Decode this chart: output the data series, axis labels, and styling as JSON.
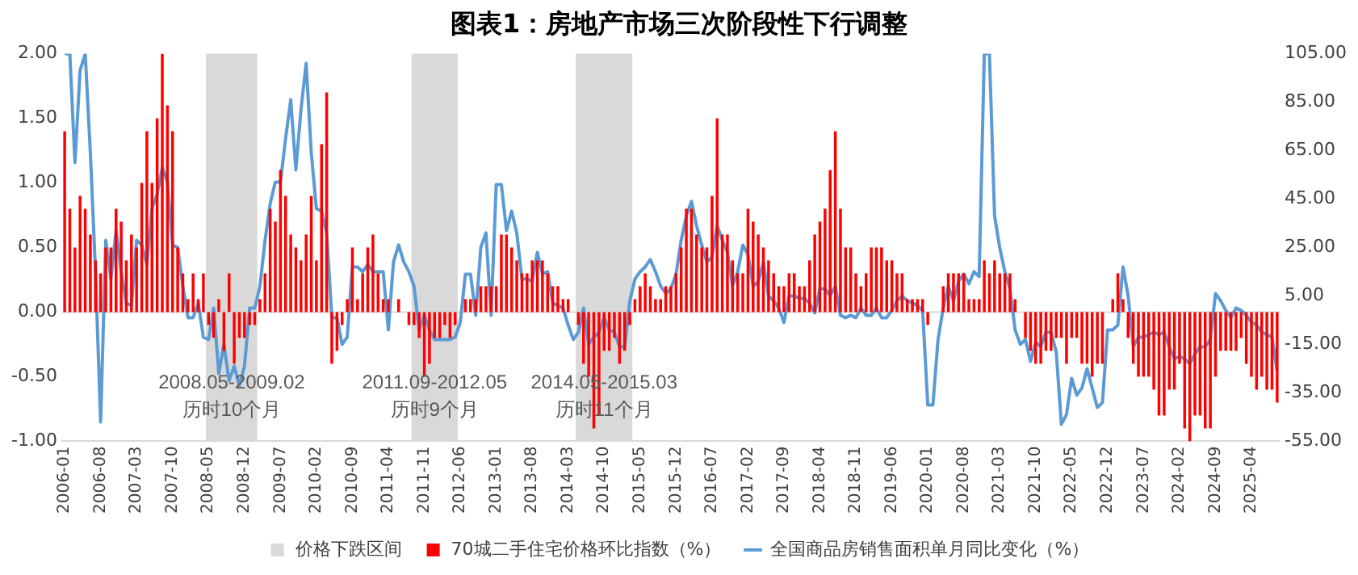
{
  "chart_data": {
    "type": "bar",
    "title": "图表1：房地产市场三次阶段性下行调整",
    "x": [
      "2006-01",
      "2006-02",
      "2006-03",
      "2006-04",
      "2006-05",
      "2006-06",
      "2006-07",
      "2006-08",
      "2006-09",
      "2006-10",
      "2006-11",
      "2006-12",
      "2007-01",
      "2007-02",
      "2007-03",
      "2007-04",
      "2007-05",
      "2007-06",
      "2007-07",
      "2007-08",
      "2007-09",
      "2007-10",
      "2007-11",
      "2007-12",
      "2008-01",
      "2008-02",
      "2008-03",
      "2008-04",
      "2008-05",
      "2008-06",
      "2008-07",
      "2008-08",
      "2008-09",
      "2008-10",
      "2008-11",
      "2008-12",
      "2009-01",
      "2009-02",
      "2009-03",
      "2009-04",
      "2009-05",
      "2009-06",
      "2009-07",
      "2009-08",
      "2009-09",
      "2009-10",
      "2009-11",
      "2009-12",
      "2010-01",
      "2010-02",
      "2010-03",
      "2010-04",
      "2010-05",
      "2010-06",
      "2010-07",
      "2010-08",
      "2010-09",
      "2010-10",
      "2010-11",
      "2010-12",
      "2011-01",
      "2011-02",
      "2011-03",
      "2011-04",
      "2011-05",
      "2011-06",
      "2011-07",
      "2011-08",
      "2011-09",
      "2011-10",
      "2011-11",
      "2011-12",
      "2012-01",
      "2012-02",
      "2012-03",
      "2012-04",
      "2012-05",
      "2012-06",
      "2012-07",
      "2012-08",
      "2012-09",
      "2012-10",
      "2012-11",
      "2012-12",
      "2013-01",
      "2013-02",
      "2013-03",
      "2013-04",
      "2013-05",
      "2013-06",
      "2013-07",
      "2013-08",
      "2013-09",
      "2013-10",
      "2013-11",
      "2013-12",
      "2014-01",
      "2014-02",
      "2014-03",
      "2014-04",
      "2014-05",
      "2014-06",
      "2014-07",
      "2014-08",
      "2014-09",
      "2014-10",
      "2014-11",
      "2014-12",
      "2015-01",
      "2015-02",
      "2015-03",
      "2015-04",
      "2015-05",
      "2015-06",
      "2015-07",
      "2015-08",
      "2015-09",
      "2015-10",
      "2015-11",
      "2015-12",
      "2016-01",
      "2016-02",
      "2016-03",
      "2016-04",
      "2016-05",
      "2016-06",
      "2016-07",
      "2016-08",
      "2016-09",
      "2016-10",
      "2016-11",
      "2016-12",
      "2017-01",
      "2017-02",
      "2017-03",
      "2017-04",
      "2017-05",
      "2017-06",
      "2017-07",
      "2017-08",
      "2017-09",
      "2017-10",
      "2017-11",
      "2017-12",
      "2018-01",
      "2018-02",
      "2018-03",
      "2018-04",
      "2018-05",
      "2018-06",
      "2018-07",
      "2018-08",
      "2018-09",
      "2018-10",
      "2018-11",
      "2018-12",
      "2019-01",
      "2019-02",
      "2019-03",
      "2019-04",
      "2019-05",
      "2019-06",
      "2019-07",
      "2019-08",
      "2019-09",
      "2019-10",
      "2019-11",
      "2019-12",
      "2020-01",
      "2020-02",
      "2020-03",
      "2020-04",
      "2020-05",
      "2020-06",
      "2020-07",
      "2020-08",
      "2020-09",
      "2020-10",
      "2020-11",
      "2020-12",
      "2021-01",
      "2021-02",
      "2021-03",
      "2021-04",
      "2021-05",
      "2021-06",
      "2021-07",
      "2021-08",
      "2021-09",
      "2021-10",
      "2021-11",
      "2021-12",
      "2022-01",
      "2022-02",
      "2022-03",
      "2022-04",
      "2022-05",
      "2022-06",
      "2022-07",
      "2022-08",
      "2022-09",
      "2022-10",
      "2022-11",
      "2022-12",
      "2023-01",
      "2023-02",
      "2023-03",
      "2023-04",
      "2023-05",
      "2023-06",
      "2023-07",
      "2023-08",
      "2023-09",
      "2023-10",
      "2023-11",
      "2023-12",
      "2024-01",
      "2024-02",
      "2024-03",
      "2024-04",
      "2024-05",
      "2024-06",
      "2024-07",
      "2024-08",
      "2024-09",
      "2024-10",
      "2024-11",
      "2024-12",
      "2025-01",
      "2025-02",
      "2025-03",
      "2025-04",
      "2025-05",
      "2025-06",
      "2025-07",
      "2025-08",
      "2025-09"
    ],
    "xticks": [
      "2006-01",
      "2006-08",
      "2007-03",
      "2007-10",
      "2008-05",
      "2008-12",
      "2009-07",
      "2010-02",
      "2010-09",
      "2011-04",
      "2011-11",
      "2012-06",
      "2013-01",
      "2013-08",
      "2014-03",
      "2014-10",
      "2015-05",
      "2015-12",
      "2016-07",
      "2017-02",
      "2017-09",
      "2018-04",
      "2018-11",
      "2019-06",
      "2020-01",
      "2020-08",
      "2021-03",
      "2021-10",
      "2022-05",
      "2022-12",
      "2023-07",
      "2024-02",
      "2024-09",
      "2025-04"
    ],
    "xlim": [
      "2005-12-16",
      "2025-09-16"
    ],
    "ylim": [
      -1,
      2
    ],
    "yticks": [
      {
        "value": -1,
        "label": "-1.00"
      },
      {
        "value": -0.5,
        "label": "-0.50"
      },
      {
        "value": 0,
        "label": "0.00"
      },
      {
        "value": 0.5,
        "label": "0.50"
      },
      {
        "value": 1,
        "label": "1.00"
      },
      {
        "value": 1.5,
        "label": "1.50"
      },
      {
        "value": 2,
        "label": "2.00"
      }
    ],
    "y2lim": [
      -55,
      105
    ],
    "y2ticks": [
      {
        "value": -55,
        "label": "-55.00"
      },
      {
        "value": -35,
        "label": "-35.00"
      },
      {
        "value": -15,
        "label": "-15.00"
      },
      {
        "value": 5,
        "label": "5.00"
      },
      {
        "value": 25,
        "label": "25.00"
      },
      {
        "value": 45,
        "label": "45.00"
      },
      {
        "value": 65,
        "label": "65.00"
      },
      {
        "value": 85,
        "label": "85.00"
      },
      {
        "value": 105,
        "label": "105.00"
      }
    ],
    "legend": "bottom",
    "marker": "none",
    "grid": false,
    "ref_lines": [
      {
        "axis": "y",
        "value": 0,
        "color": "#d9d9d9"
      }
    ],
    "bands": [
      {
        "axis": "x",
        "from": "2008-05",
        "to": "2009-02",
        "label": "价格下跌区间",
        "color": "#d9d9d9"
      },
      {
        "axis": "x",
        "from": "2011-09",
        "to": "2012-05",
        "color": "#d9d9d9"
      },
      {
        "axis": "x",
        "from": "2014-05",
        "to": "2015-03",
        "color": "#d9d9d9"
      }
    ],
    "annotations": [
      "2008.05-2009.02\n历时10个月",
      "2011.09-2012.05\n历时9个月",
      "2014.05-2015.03\n历时11个月"
    ],
    "series": [
      {
        "name": "70城二手住宅价格环比指数（%）",
        "color": "#ff0000",
        "values": [
          1.4,
          0.8,
          0.5,
          0.9,
          0.8,
          0.6,
          0.4,
          0.3,
          0.5,
          0.5,
          0.8,
          0.7,
          0.4,
          0.6,
          0.5,
          1.0,
          1.4,
          1.0,
          1.5,
          2.0,
          1.6,
          1.4,
          0.5,
          0.3,
          0.1,
          0.3,
          0.1,
          0.3,
          -0.1,
          -0.2,
          0.1,
          -0.3,
          0.3,
          -0.4,
          -0.2,
          -0.2,
          -0.1,
          -0.1,
          0.1,
          0.3,
          0.8,
          0.7,
          1.1,
          0.9,
          0.6,
          0.5,
          0.4,
          0.6,
          0.9,
          0.4,
          1.3,
          1.7,
          -0.4,
          -0.3,
          -0.1,
          0.1,
          0.5,
          0.1,
          0.3,
          0.5,
          0.6,
          0.3,
          0.1,
          0.1,
          0.0,
          0.1,
          0.0,
          -0.1,
          -0.1,
          -0.2,
          -0.5,
          -0.4,
          -0.2,
          -0.2,
          -0.1,
          -0.2,
          -0.1,
          0.0,
          0.1,
          0.1,
          0.1,
          0.2,
          0.2,
          0.2,
          0.2,
          0.6,
          0.6,
          0.5,
          0.4,
          0.3,
          0.3,
          0.4,
          0.4,
          0.4,
          0.3,
          0.2,
          0.2,
          0.1,
          0.1,
          0.0,
          -0.1,
          -0.4,
          -0.5,
          -0.9,
          -0.8,
          -0.3,
          -0.3,
          -0.2,
          -0.4,
          -0.3,
          -0.1,
          0.1,
          0.2,
          0.3,
          0.2,
          0.1,
          0.1,
          0.2,
          0.2,
          0.3,
          0.5,
          0.8,
          0.8,
          0.6,
          0.5,
          0.5,
          0.9,
          1.5,
          0.6,
          0.6,
          0.4,
          0.3,
          0.3,
          0.8,
          0.7,
          0.6,
          0.5,
          0.4,
          0.3,
          0.2,
          0.2,
          0.3,
          0.3,
          0.2,
          0.2,
          0.4,
          0.6,
          0.7,
          0.8,
          1.1,
          1.4,
          0.8,
          0.5,
          0.5,
          0.3,
          0.2,
          0.3,
          0.5,
          0.5,
          0.5,
          0.4,
          0.4,
          0.3,
          0.3,
          0.1,
          0.1,
          0.1,
          0.1,
          -0.1,
          0.0,
          0.0,
          0.2,
          0.3,
          0.3,
          0.3,
          0.3,
          0.1,
          0.1,
          0.1,
          0.4,
          0.3,
          0.4,
          0.3,
          0.3,
          0.3,
          0.1,
          0.0,
          -0.2,
          -0.3,
          -0.4,
          -0.4,
          -0.3,
          -0.3,
          -0.2,
          -0.2,
          -0.4,
          -0.2,
          -0.2,
          -0.4,
          -0.4,
          -0.5,
          -0.4,
          -0.4,
          0.0,
          0.1,
          0.3,
          0.1,
          -0.2,
          -0.4,
          -0.5,
          -0.5,
          -0.5,
          -0.6,
          -0.8,
          -0.8,
          -0.6,
          -0.6,
          -0.4,
          -0.9,
          -1.0,
          -0.8,
          -0.8,
          -0.9,
          -0.9,
          -0.5,
          -0.3,
          -0.3,
          -0.3,
          -0.3,
          -0.2,
          -0.4,
          -0.5,
          -0.6,
          -0.5,
          -0.6,
          -0.6,
          -0.7
        ]
      },
      {
        "name": "全国商品房销售面积单月同比变化（%）",
        "type": "line",
        "axis": "y2",
        "color": "#5b9bd5",
        "values": [
          105,
          105,
          60,
          98,
          105,
          64,
          15,
          -47,
          28,
          12,
          32,
          15,
          2,
          1,
          28,
          26,
          18,
          41,
          47,
          58,
          52,
          26,
          25,
          9,
          -4,
          -4,
          2,
          -12,
          -13,
          0,
          -27,
          -15,
          -30,
          -24,
          -32,
          -24,
          0,
          0,
          9,
          28,
          43,
          52,
          52,
          70,
          86,
          57,
          82,
          101,
          64,
          41,
          40,
          31,
          -4,
          -4,
          -15,
          -12,
          17,
          17,
          15,
          18,
          15,
          15,
          15,
          -9,
          19,
          26,
          19,
          15,
          9,
          -9,
          -3,
          -9,
          -13,
          -13,
          -13,
          -13,
          -12,
          -6,
          14,
          14,
          -3,
          25,
          31,
          -3,
          51,
          51,
          32,
          40,
          31,
          12,
          12,
          11,
          23,
          14,
          15,
          2,
          1,
          0,
          -7,
          -13,
          -10,
          0,
          -15,
          -12,
          -10,
          -4,
          -9,
          -10,
          -16,
          -16,
          3,
          12,
          15,
          17,
          20,
          15,
          9,
          6,
          8,
          14,
          28,
          38,
          44,
          34,
          26,
          19,
          21,
          34,
          28,
          23,
          9,
          15,
          26,
          22,
          9,
          11,
          19,
          5,
          3,
          0,
          -6,
          5,
          5,
          4,
          4,
          2,
          -2,
          8,
          8,
          5,
          9,
          -3,
          -4,
          -3,
          -4,
          0,
          -3,
          -3,
          0,
          -4,
          -4,
          -1,
          3,
          5,
          3,
          2,
          1,
          -1,
          -40,
          -40,
          -13,
          0,
          9,
          3,
          11,
          14,
          10,
          15,
          13,
          105,
          105,
          38,
          25,
          15,
          8,
          -9,
          -15,
          -13,
          -22,
          -14,
          -16,
          -10,
          -10,
          -18,
          -48,
          -44,
          -29,
          -36,
          -33,
          -25,
          -33,
          -41,
          -39,
          -9,
          -9,
          -7,
          17,
          5,
          -16,
          -12,
          -12,
          -11,
          -10,
          -11,
          -10,
          -16,
          -21,
          -20,
          -21,
          -23,
          -19,
          -16,
          -16,
          -13,
          6,
          3,
          -1,
          -4,
          0,
          -1,
          -3,
          -6,
          -7,
          -10,
          -11,
          -12,
          -26
        ]
      }
    ]
  }
}
